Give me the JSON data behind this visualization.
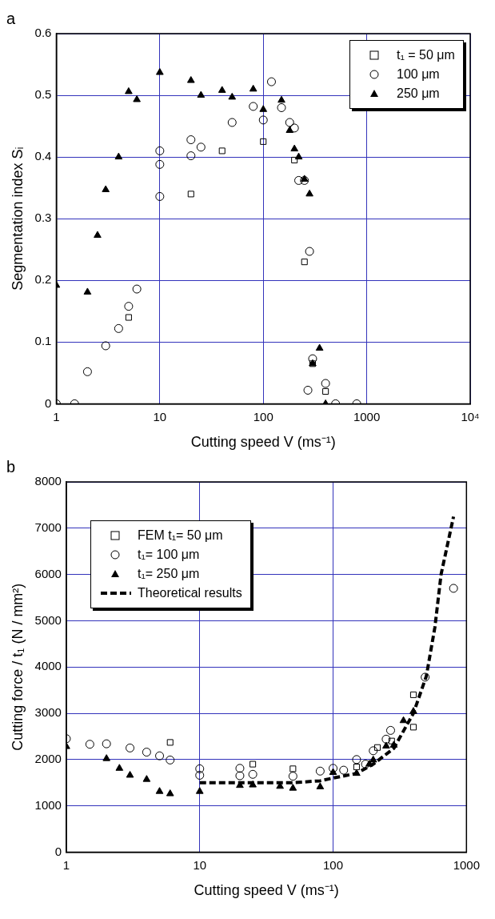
{
  "chart_data": [
    {
      "type": "scatter",
      "title": "a",
      "xlabel": "Cutting speed V (ms⁻¹)",
      "ylabel": "Segmentation index Sᵢ",
      "log": "x",
      "grid": true,
      "legend": "top right",
      "xlim": [
        1,
        10000
      ],
      "xticks": [
        1,
        10,
        100,
        1000,
        {
          "value": 10000,
          "label": "10⁴"
        }
      ],
      "ylim": [
        0,
        0.6
      ],
      "yticks": [
        0,
        0.1,
        0.2,
        0.3,
        0.4,
        0.5,
        0.6
      ],
      "series": [
        {
          "name": "t₁ = 50 μm",
          "type": "scatter",
          "marker": "square",
          "color": "#000000",
          "x": [
            5,
            20,
            40,
            100,
            200,
            250,
            300,
            400
          ],
          "values": [
            0.14,
            0.34,
            0.41,
            0.425,
            0.395,
            0.23,
            0.065,
            0.02
          ]
        },
        {
          "name": "100 μm",
          "type": "scatter",
          "marker": "circle",
          "color": "#000000",
          "x": [
            1,
            1.5,
            2,
            3,
            4,
            5,
            6,
            10,
            10,
            10,
            20,
            20,
            25,
            50,
            80,
            100,
            120,
            150,
            180,
            200,
            220,
            250,
            280,
            270,
            300,
            400,
            500,
            800
          ],
          "values": [
            0,
            0,
            0.052,
            0.094,
            0.122,
            0.158,
            0.186,
            0.336,
            0.388,
            0.41,
            0.402,
            0.428,
            0.416,
            0.456,
            0.482,
            0.46,
            0.522,
            0.48,
            0.456,
            0.447,
            0.362,
            0.362,
            0.247,
            0.022,
            0.073,
            0.033,
            0,
            0
          ]
        },
        {
          "name": "250 μm",
          "type": "scatter",
          "marker": "triangle",
          "color": "#000000",
          "x": [
            1,
            2,
            2.5,
            3,
            4,
            5,
            6,
            10,
            20,
            25,
            40,
            50,
            80,
            100,
            150,
            180,
            200,
            220,
            250,
            280,
            300,
            350,
            400
          ],
          "values": [
            0.192,
            0.181,
            0.273,
            0.347,
            0.4,
            0.506,
            0.493,
            0.537,
            0.524,
            0.5,
            0.508,
            0.497,
            0.51,
            0.477,
            0.492,
            0.443,
            0.413,
            0.4,
            0.364,
            0.34,
            0.065,
            0.09,
            0
          ]
        }
      ]
    },
    {
      "type": "scatter",
      "title": "b",
      "xlabel": "Cutting speed V (ms⁻¹)",
      "ylabel": "Cutting force / t₁ (N / mm²)",
      "log": "x",
      "grid": true,
      "legend": "top left",
      "xlim": [
        1,
        1000
      ],
      "xticks": [
        1,
        10,
        100,
        1000
      ],
      "ylim": [
        0,
        8000
      ],
      "yticks": [
        0,
        1000,
        2000,
        3000,
        4000,
        5000,
        6000,
        7000,
        8000
      ],
      "series": [
        {
          "name": "FEM  t₁= 50 μm",
          "type": "scatter",
          "marker": "square",
          "color": "#000000",
          "x": [
            6,
            25,
            50,
            150,
            215,
            275,
            400,
            400
          ],
          "values": [
            2370,
            1900,
            1800,
            1840,
            2260,
            2400,
            3400,
            2700
          ]
        },
        {
          "name": "t₁= 100 μm",
          "type": "scatter",
          "marker": "circle",
          "color": "#000000",
          "x": [
            1,
            1.5,
            2,
            3,
            4,
            5,
            6,
            10,
            10,
            20,
            20,
            25,
            50,
            80,
            100,
            120,
            150,
            175,
            200,
            250,
            270,
            490,
            800
          ],
          "values": [
            2450,
            2330,
            2340,
            2250,
            2160,
            2080,
            1990,
            1800,
            1660,
            1810,
            1650,
            1680,
            1640,
            1750,
            1810,
            1770,
            2000,
            1900,
            2190,
            2440,
            2630,
            3780,
            5700
          ]
        },
        {
          "name": "t₁= 250 μm",
          "type": "scatter",
          "marker": "triangle",
          "color": "#000000",
          "x": [
            1,
            2,
            2.5,
            3,
            4,
            5,
            6,
            10,
            20,
            25,
            40,
            50,
            80,
            100,
            150,
            187,
            200,
            250,
            285,
            337,
            400
          ],
          "values": [
            2280,
            2020,
            1810,
            1660,
            1570,
            1310,
            1260,
            1310,
            1440,
            1450,
            1420,
            1380,
            1410,
            1720,
            1700,
            1900,
            1990,
            2290,
            2310,
            2840,
            3040
          ]
        },
        {
          "name": "Theoretical results",
          "type": "line",
          "marker": "none",
          "line_style": "dashed",
          "color": "#000000",
          "x": [
            10,
            50,
            80,
            100,
            150,
            200,
            285,
            400,
            500,
            580,
            645,
            800
          ],
          "values": [
            1500,
            1500,
            1540,
            1600,
            1700,
            1900,
            2240,
            3000,
            3800,
            4860,
            6000,
            7250
          ]
        }
      ]
    }
  ]
}
